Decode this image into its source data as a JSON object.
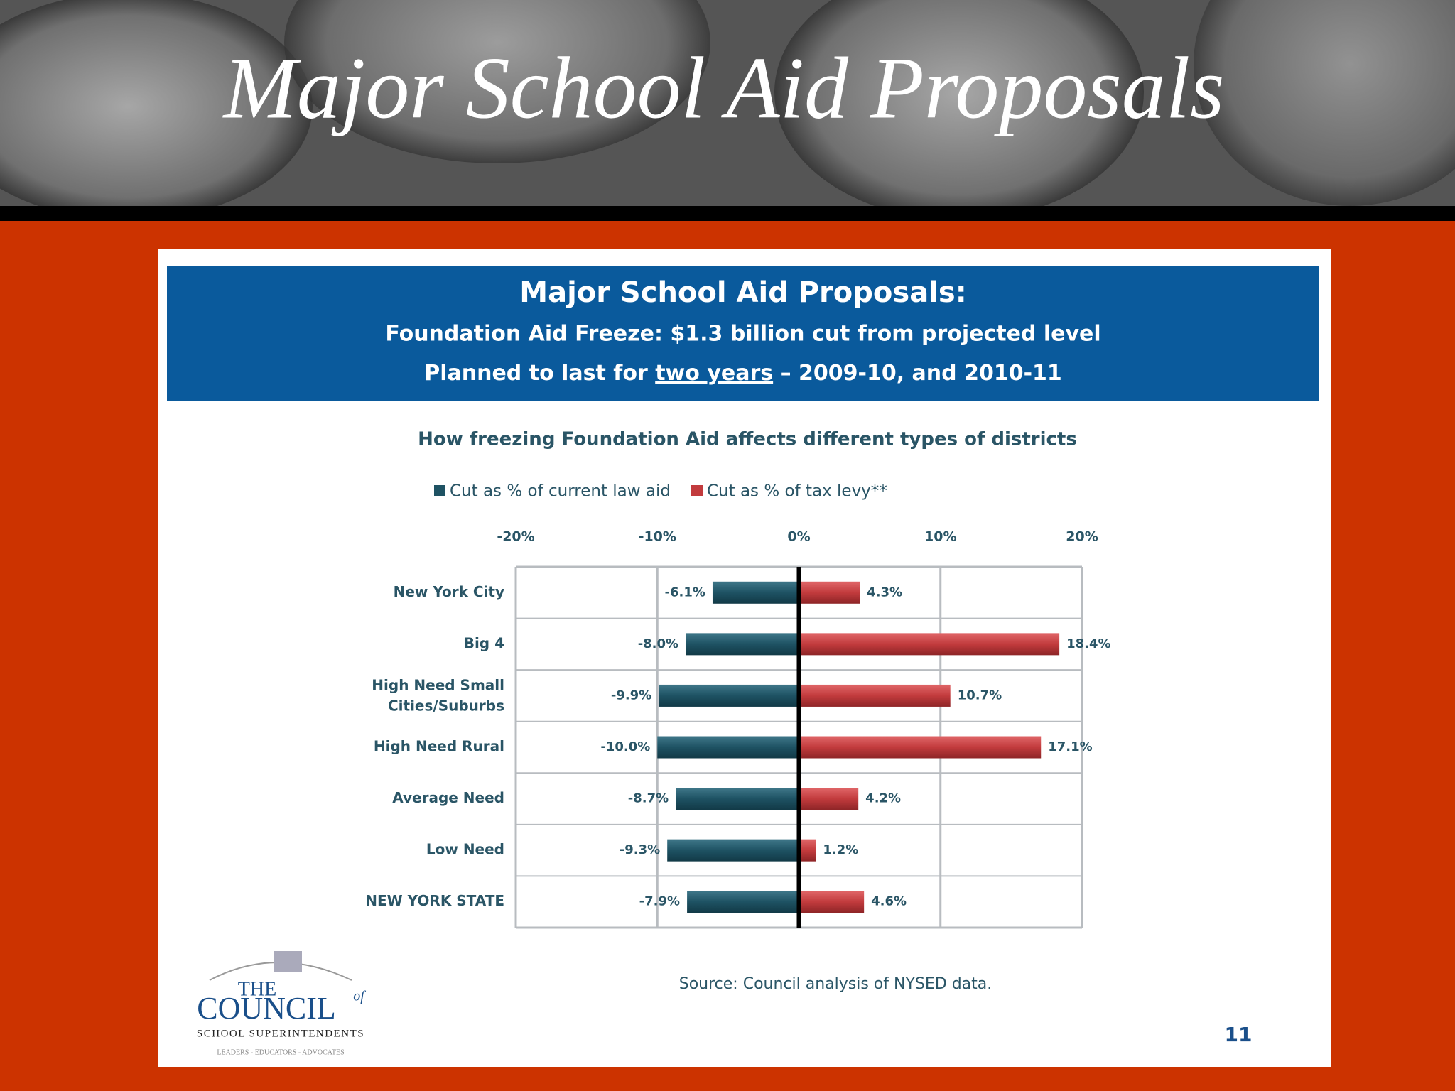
{
  "slide_title": "Major School Aid Proposals",
  "header": {
    "title": "Major School Aid Proposals:",
    "line2": "Foundation Aid Freeze:  $1.3 billion cut from projected level",
    "line3_parts": [
      "Planned to last for ",
      "two years",
      " – 2009-10, and 2010-11"
    ]
  },
  "chart_data": {
    "type": "hbar",
    "title": "How freezing Foundation Aid affects different types of districts",
    "categories": [
      "New York City",
      "Big 4",
      "High Need Small Cities/Suburbs",
      "High Need Rural",
      "Average Need",
      "Low Need",
      "NEW YORK STATE"
    ],
    "series": [
      {
        "name": "Cut as % of current law aid",
        "color": "#1e5263",
        "values": [
          -6.1,
          -8.0,
          -9.9,
          -10.0,
          -8.7,
          -9.3,
          -7.9
        ],
        "value_labels": [
          "-6.1%",
          "-8.0%",
          "-9.9%",
          "-10.0%",
          "-8.7%",
          "-9.3%",
          "-7.9%"
        ]
      },
      {
        "name": "Cut as % of tax levy**",
        "color": "#c23b3d",
        "values": [
          4.3,
          18.4,
          10.7,
          17.1,
          4.2,
          1.2,
          4.6
        ],
        "value_labels": [
          "4.3%",
          "18.4%",
          "10.7%",
          "17.1%",
          "4.2%",
          "1.2%",
          "4.6%"
        ]
      }
    ],
    "xlim": [
      -20,
      20
    ],
    "xticks": [
      {
        "value": -20,
        "label": "-20%"
      },
      {
        "value": -10,
        "label": "-10%"
      },
      {
        "value": 0,
        "label": "0%"
      },
      {
        "value": 10,
        "label": "10%"
      },
      {
        "value": 20,
        "label": "20%"
      }
    ],
    "grid": true,
    "legend": "top"
  },
  "source": "Source:  Council analysis of NYSED data.",
  "page_number": "11",
  "logo": {
    "line1": "THE",
    "line2": "COUNCIL",
    "line2_sup": "of",
    "line3": "SCHOOL SUPERINTENDENTS",
    "line4": "LEADERS - EDUCATORS - ADVOCATES"
  }
}
